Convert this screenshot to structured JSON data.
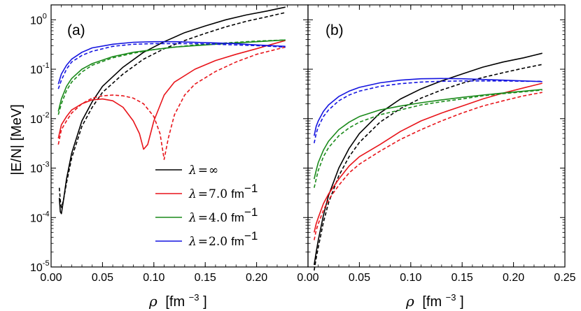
{
  "chart_data": [
    {
      "panel": "(a)",
      "type": "line",
      "xscale": "linear",
      "yscale": "log",
      "xlim": [
        0.0,
        0.25
      ],
      "ylim": [
        1e-05,
        2.0
      ],
      "xticks": [
        "0.00",
        "0.05",
        "0.10",
        "0.15",
        "0.20"
      ],
      "yticks_exp": [
        "-5",
        "-4",
        "-3",
        "-2",
        "-1",
        "0"
      ],
      "ytick_base": "10",
      "ylabel": "|E/N| [MeV]",
      "xlabel": "ρ [fm⁻³]",
      "series": [
        {
          "name": "λ=∞ solid",
          "color": "#000000",
          "dash": false,
          "x": [
            0.008,
            0.009,
            0.01,
            0.012,
            0.015,
            0.02,
            0.03,
            0.04,
            0.05,
            0.07,
            0.09,
            0.11,
            0.13,
            0.15,
            0.17,
            0.19,
            0.21,
            0.228
          ],
          "y": [
            0.00025,
            0.00013,
            0.00012,
            0.00022,
            0.0006,
            0.002,
            0.009,
            0.022,
            0.045,
            0.11,
            0.22,
            0.36,
            0.55,
            0.75,
            1.0,
            1.25,
            1.5,
            1.8
          ]
        },
        {
          "name": "λ=∞ dashed",
          "color": "#000000",
          "dash": true,
          "x": [
            0.008,
            0.009,
            0.01,
            0.012,
            0.015,
            0.02,
            0.03,
            0.04,
            0.05,
            0.07,
            0.09,
            0.11,
            0.13,
            0.15,
            0.17,
            0.19,
            0.21,
            0.228
          ],
          "y": [
            0.0004,
            0.00022,
            0.00016,
            0.00022,
            0.0005,
            0.0016,
            0.007,
            0.017,
            0.034,
            0.08,
            0.16,
            0.26,
            0.38,
            0.53,
            0.72,
            0.93,
            1.15,
            1.4
          ]
        },
        {
          "name": "λ=7.0 solid",
          "color": "#e8141a",
          "dash": false,
          "x": [
            0.007,
            0.01,
            0.015,
            0.02,
            0.03,
            0.04,
            0.05,
            0.06,
            0.07,
            0.08,
            0.086,
            0.09,
            0.094,
            0.1,
            0.11,
            0.12,
            0.14,
            0.16,
            0.18,
            0.2,
            0.215,
            0.228
          ],
          "y": [
            0.004,
            0.0075,
            0.011,
            0.015,
            0.02,
            0.024,
            0.025,
            0.023,
            0.017,
            0.009,
            0.005,
            0.0024,
            0.003,
            0.009,
            0.03,
            0.055,
            0.1,
            0.15,
            0.2,
            0.26,
            0.32,
            0.38
          ]
        },
        {
          "name": "λ=7.0 dashed",
          "color": "#e8141a",
          "dash": true,
          "x": [
            0.007,
            0.01,
            0.015,
            0.02,
            0.03,
            0.04,
            0.05,
            0.06,
            0.07,
            0.08,
            0.09,
            0.1,
            0.106,
            0.11,
            0.114,
            0.12,
            0.13,
            0.14,
            0.16,
            0.18,
            0.2,
            0.228
          ],
          "y": [
            0.003,
            0.006,
            0.009,
            0.013,
            0.02,
            0.026,
            0.029,
            0.03,
            0.029,
            0.026,
            0.02,
            0.011,
            0.005,
            0.0015,
            0.004,
            0.012,
            0.03,
            0.05,
            0.09,
            0.14,
            0.2,
            0.28
          ]
        },
        {
          "name": "λ=4.0 solid",
          "color": "#1a8a1a",
          "dash": false,
          "x": [
            0.007,
            0.01,
            0.015,
            0.02,
            0.03,
            0.04,
            0.06,
            0.08,
            0.1,
            0.12,
            0.14,
            0.16,
            0.18,
            0.2,
            0.228
          ],
          "y": [
            0.014,
            0.025,
            0.045,
            0.065,
            0.1,
            0.13,
            0.18,
            0.22,
            0.25,
            0.28,
            0.3,
            0.32,
            0.34,
            0.36,
            0.39
          ]
        },
        {
          "name": "λ=4.0 dashed",
          "color": "#1a8a1a",
          "dash": true,
          "x": [
            0.007,
            0.01,
            0.015,
            0.02,
            0.03,
            0.04,
            0.06,
            0.08,
            0.1,
            0.12,
            0.14,
            0.16,
            0.18,
            0.2,
            0.228
          ],
          "y": [
            0.012,
            0.02,
            0.037,
            0.055,
            0.088,
            0.12,
            0.17,
            0.21,
            0.25,
            0.28,
            0.31,
            0.33,
            0.35,
            0.37,
            0.39
          ]
        },
        {
          "name": "λ=2.0 solid",
          "color": "#1414e0",
          "dash": false,
          "x": [
            0.007,
            0.01,
            0.015,
            0.02,
            0.03,
            0.04,
            0.06,
            0.08,
            0.1,
            0.12,
            0.14,
            0.16,
            0.18,
            0.2,
            0.228
          ],
          "y": [
            0.05,
            0.08,
            0.12,
            0.16,
            0.22,
            0.27,
            0.32,
            0.35,
            0.36,
            0.36,
            0.35,
            0.34,
            0.33,
            0.31,
            0.29
          ]
        },
        {
          "name": "λ=2.0 dashed",
          "color": "#1414e0",
          "dash": true,
          "x": [
            0.007,
            0.01,
            0.015,
            0.02,
            0.03,
            0.04,
            0.06,
            0.08,
            0.1,
            0.12,
            0.14,
            0.16,
            0.18,
            0.2,
            0.228
          ],
          "y": [
            0.04,
            0.06,
            0.1,
            0.14,
            0.19,
            0.23,
            0.29,
            0.32,
            0.33,
            0.33,
            0.33,
            0.32,
            0.31,
            0.3,
            0.28
          ]
        }
      ]
    },
    {
      "panel": "(b)",
      "type": "line",
      "xscale": "linear",
      "yscale": "log",
      "xlim": [
        0.0,
        0.25
      ],
      "ylim": [
        1e-05,
        2.0
      ],
      "xticks": [
        "0.00",
        "0.05",
        "0.10",
        "0.15",
        "0.20",
        "0.25"
      ],
      "xlabel": "ρ [fm⁻³]",
      "series": [
        {
          "name": "λ=∞ solid",
          "color": "#000000",
          "dash": false,
          "x": [
            0.006,
            0.008,
            0.01,
            0.015,
            0.02,
            0.03,
            0.04,
            0.05,
            0.07,
            0.09,
            0.11,
            0.13,
            0.15,
            0.17,
            0.19,
            0.21,
            0.228
          ],
          "y": [
            1.1e-05,
            2e-05,
            3.5e-05,
            0.00011,
            0.00028,
            0.001,
            0.0025,
            0.005,
            0.013,
            0.025,
            0.04,
            0.058,
            0.08,
            0.11,
            0.14,
            0.17,
            0.21
          ]
        },
        {
          "name": "λ=∞ dashed",
          "color": "#000000",
          "dash": true,
          "x": [
            0.006,
            0.008,
            0.01,
            0.015,
            0.02,
            0.03,
            0.04,
            0.05,
            0.07,
            0.09,
            0.11,
            0.13,
            0.15,
            0.17,
            0.19,
            0.21,
            0.228
          ],
          "y": [
            8.5e-06,
            1.5e-05,
            2.5e-05,
            8e-05,
            0.0002,
            0.0007,
            0.0017,
            0.0033,
            0.0085,
            0.016,
            0.026,
            0.038,
            0.052,
            0.068,
            0.085,
            0.105,
            0.125
          ]
        },
        {
          "name": "λ=7.0 solid",
          "color": "#e8141a",
          "dash": false,
          "x": [
            0.006,
            0.008,
            0.01,
            0.015,
            0.02,
            0.03,
            0.04,
            0.05,
            0.07,
            0.09,
            0.11,
            0.13,
            0.15,
            0.17,
            0.19,
            0.21,
            0.228
          ],
          "y": [
            5e-05,
            7.5e-05,
            0.0001,
            0.00019,
            0.0003,
            0.0006,
            0.0011,
            0.0017,
            0.003,
            0.0055,
            0.009,
            0.013,
            0.018,
            0.025,
            0.033,
            0.042,
            0.052
          ]
        },
        {
          "name": "λ=7.0 dashed",
          "color": "#e8141a",
          "dash": true,
          "x": [
            0.006,
            0.008,
            0.01,
            0.015,
            0.02,
            0.03,
            0.04,
            0.05,
            0.07,
            0.09,
            0.11,
            0.13,
            0.15,
            0.17,
            0.19,
            0.21,
            0.228
          ],
          "y": [
            3.5e-05,
            5.5e-05,
            7.5e-05,
            0.00014,
            0.00023,
            0.00045,
            0.0008,
            0.0012,
            0.0022,
            0.0038,
            0.006,
            0.009,
            0.013,
            0.018,
            0.023,
            0.029,
            0.034
          ]
        },
        {
          "name": "λ=4.0 solid",
          "color": "#1a8a1a",
          "dash": false,
          "x": [
            0.006,
            0.008,
            0.01,
            0.015,
            0.02,
            0.03,
            0.04,
            0.05,
            0.07,
            0.09,
            0.11,
            0.13,
            0.15,
            0.17,
            0.19,
            0.21,
            0.228
          ],
          "y": [
            0.0006,
            0.0009,
            0.0013,
            0.0023,
            0.0035,
            0.006,
            0.0085,
            0.011,
            0.015,
            0.018,
            0.021,
            0.024,
            0.027,
            0.03,
            0.033,
            0.036,
            0.039
          ]
        },
        {
          "name": "λ=4.0 dashed",
          "color": "#1a8a1a",
          "dash": true,
          "x": [
            0.006,
            0.008,
            0.01,
            0.015,
            0.02,
            0.03,
            0.04,
            0.05,
            0.07,
            0.09,
            0.11,
            0.13,
            0.15,
            0.17,
            0.19,
            0.21,
            0.228
          ],
          "y": [
            0.0004,
            0.0006,
            0.0009,
            0.0017,
            0.0026,
            0.0045,
            0.0065,
            0.0085,
            0.012,
            0.015,
            0.019,
            0.022,
            0.025,
            0.029,
            0.032,
            0.035,
            0.038
          ]
        },
        {
          "name": "λ=2.0 solid",
          "color": "#1414e0",
          "dash": false,
          "x": [
            0.006,
            0.008,
            0.01,
            0.015,
            0.02,
            0.03,
            0.04,
            0.05,
            0.07,
            0.09,
            0.11,
            0.13,
            0.15,
            0.17,
            0.19,
            0.21,
            0.228
          ],
          "y": [
            0.0045,
            0.007,
            0.009,
            0.014,
            0.019,
            0.028,
            0.036,
            0.043,
            0.053,
            0.06,
            0.064,
            0.065,
            0.064,
            0.062,
            0.06,
            0.058,
            0.056
          ]
        },
        {
          "name": "λ=2.0 dashed",
          "color": "#1414e0",
          "dash": true,
          "x": [
            0.006,
            0.008,
            0.01,
            0.015,
            0.02,
            0.03,
            0.04,
            0.05,
            0.07,
            0.09,
            0.11,
            0.13,
            0.15,
            0.17,
            0.19,
            0.21,
            0.228
          ],
          "y": [
            0.0032,
            0.005,
            0.0068,
            0.011,
            0.015,
            0.023,
            0.03,
            0.036,
            0.045,
            0.051,
            0.055,
            0.057,
            0.058,
            0.058,
            0.058,
            0.057,
            0.057
          ]
        }
      ]
    }
  ],
  "legend": {
    "placement": "lower-center of panel (a)",
    "items": [
      {
        "label": "λ = ∞",
        "symbol": "λ",
        "eq": "=",
        "value": "∞",
        "unit": "",
        "color": "#000000"
      },
      {
        "label": "λ = 7.0 fm⁻¹",
        "symbol": "λ",
        "eq": "=",
        "value": "7.0",
        "unit": "fm",
        "exp": "−1",
        "color": "#e8141a"
      },
      {
        "label": "λ = 4.0 fm⁻¹",
        "symbol": "λ",
        "eq": "=",
        "value": "4.0",
        "unit": "fm",
        "exp": "−1",
        "color": "#1a8a1a"
      },
      {
        "label": "λ = 2.0 fm⁻¹",
        "symbol": "λ",
        "eq": "=",
        "value": "2.0",
        "unit": "fm",
        "exp": "−1",
        "color": "#1414e0"
      }
    ]
  },
  "axis_titles": {
    "y": "|E/N| [MeV]",
    "x_symbol": "ρ",
    "x_unit": "[fm",
    "x_exp": "−3",
    "x_close": "]"
  }
}
